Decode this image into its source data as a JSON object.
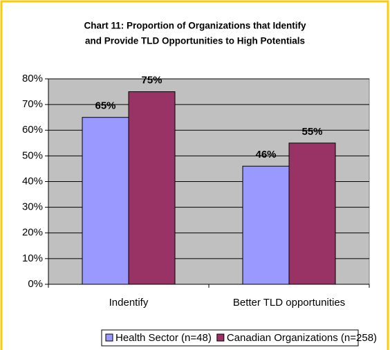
{
  "chart_data": {
    "type": "bar",
    "title": [
      "Chart 11: Proportion of Organizations that Identify",
      "and Provide TLD Opportunities to High Potentials"
    ],
    "categories": [
      "Indentify",
      "Better TLD opportunities"
    ],
    "series": [
      {
        "name": "Health Sector (n=48)",
        "color": "#9999ff",
        "values": [
          65,
          46
        ],
        "value_labels": [
          "65%",
          "46%"
        ]
      },
      {
        "name": "Canadian Organizations (n=258)",
        "color": "#993366",
        "values": [
          75,
          55
        ],
        "value_labels": [
          "75%",
          "55%"
        ]
      }
    ],
    "ylim": [
      0,
      80
    ],
    "yticks": [
      {
        "value": 0,
        "label": "0%"
      },
      {
        "value": 10,
        "label": "10%"
      },
      {
        "value": 20,
        "label": "20%"
      },
      {
        "value": 30,
        "label": "30%"
      },
      {
        "value": 40,
        "label": "40%"
      },
      {
        "value": 50,
        "label": "50%"
      },
      {
        "value": 60,
        "label": "60%"
      },
      {
        "value": 70,
        "label": "70%"
      },
      {
        "value": 80,
        "label": "80%"
      }
    ],
    "grid": true,
    "legend": "bottom"
  }
}
